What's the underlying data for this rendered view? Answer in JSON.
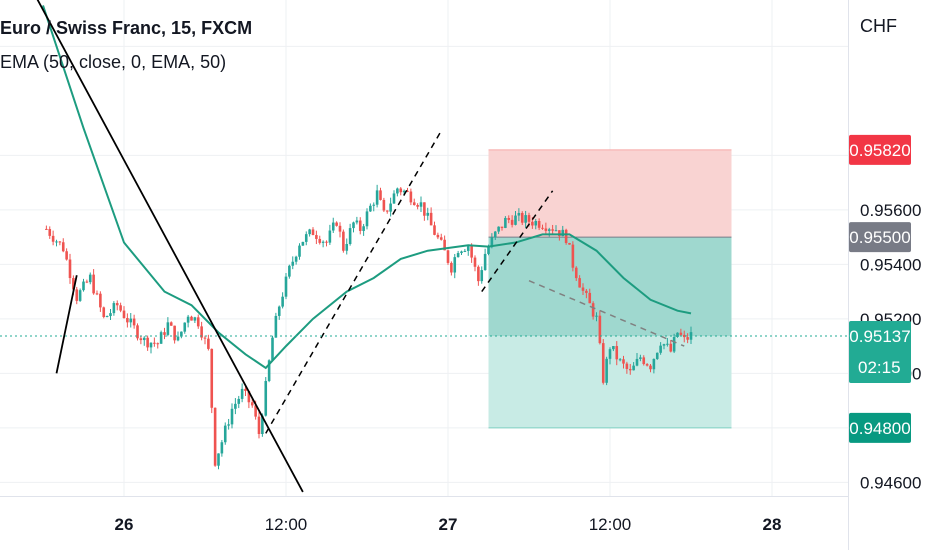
{
  "header": {
    "symbol": "Euro / Swiss Franc, 15, FXCM",
    "indicator": "EMA (50, close, 0, EMA, 50)",
    "currency": "CHF"
  },
  "colors": {
    "up": "#26a69a",
    "down": "#ef5350",
    "ema": "#1d9c80",
    "stop_zone": "#f9d3d2",
    "target_zone": "#c8ebe5",
    "target_zone_active": "#9fd8cf",
    "price_label": "#22ab94",
    "stop_label": "#f23645",
    "entry_label": "#787b86",
    "target_label": "#089981",
    "grid": "#eef0f3",
    "trendline": "#000000"
  },
  "chart_data": {
    "type": "candlestick",
    "symbol": "EURCHF",
    "timeframe": "15",
    "ylim": [
      0.9455,
      0.9637
    ],
    "y_ticks": [
      "0.95600",
      "0.95400",
      "0.95200",
      "0.95000",
      "0.94600"
    ],
    "x_ticks": [
      "26",
      "12:00",
      "27",
      "12:00",
      "28"
    ],
    "x_tick_dates": [
      "2023-06-26 00:00",
      "2023-06-26 12:00",
      "2023-06-27 00:00",
      "2023-06-27 12:00",
      "2023-06-28 00:00"
    ],
    "current_price": 0.95137,
    "countdown": "02:15",
    "position": {
      "stop": 0.9582,
      "entry": 0.955,
      "target": 0.948,
      "start": "2023-06-27 03:00",
      "end": "2023-06-27 21:00",
      "stop_label": "0.95820",
      "entry_label": "0.95500",
      "target_label": "0.94800"
    },
    "close_path": [
      [
        "2023-06-25 18:15",
        0.9553
      ],
      [
        "2023-06-25 19:30",
        0.9546
      ],
      [
        "2023-06-25 20:30",
        0.9528
      ],
      [
        "2023-06-25 21:30",
        0.9535
      ],
      [
        "2023-06-25 22:30",
        0.952
      ],
      [
        "2023-06-25 23:30",
        0.9525
      ],
      [
        "2023-06-26 00:30",
        0.9518
      ],
      [
        "2023-06-26 01:30",
        0.9512
      ],
      [
        "2023-06-26 02:30",
        0.9511
      ],
      [
        "2023-06-26 03:15",
        0.9518
      ],
      [
        "2023-06-26 04:00",
        0.9512
      ],
      [
        "2023-06-26 04:45",
        0.9522
      ],
      [
        "2023-06-26 05:30",
        0.9519
      ],
      [
        "2023-06-26 06:15",
        0.9508
      ],
      [
        "2023-06-26 06:45",
        0.9468
      ],
      [
        "2023-06-26 07:15",
        0.9475
      ],
      [
        "2023-06-26 08:00",
        0.9487
      ],
      [
        "2023-06-26 08:45",
        0.9493
      ],
      [
        "2023-06-26 09:30",
        0.9488
      ],
      [
        "2023-06-26 10:00",
        0.9478
      ],
      [
        "2023-06-26 10:30",
        0.9495
      ],
      [
        "2023-06-26 11:00",
        0.9513
      ],
      [
        "2023-06-26 11:30",
        0.9525
      ],
      [
        "2023-06-26 12:15",
        0.9538
      ],
      [
        "2023-06-26 13:00",
        0.9548
      ],
      [
        "2023-06-26 14:00",
        0.9552
      ],
      [
        "2023-06-26 15:00",
        0.9548
      ],
      [
        "2023-06-26 15:45",
        0.9556
      ],
      [
        "2023-06-26 16:15",
        0.9546
      ],
      [
        "2023-06-26 17:00",
        0.9555
      ],
      [
        "2023-06-26 17:30",
        0.9553
      ],
      [
        "2023-06-26 18:15",
        0.9561
      ],
      [
        "2023-06-26 18:45",
        0.9566
      ],
      [
        "2023-06-26 19:15",
        0.9558
      ],
      [
        "2023-06-26 19:45",
        0.9563
      ],
      [
        "2023-06-26 20:15",
        0.9568
      ],
      [
        "2023-06-26 21:00",
        0.9566
      ],
      [
        "2023-06-26 22:00",
        0.9562
      ],
      [
        "2023-06-26 22:45",
        0.9554
      ],
      [
        "2023-06-26 23:30",
        0.9547
      ],
      [
        "2023-06-27 00:15",
        0.9539
      ],
      [
        "2023-06-27 00:45",
        0.9546
      ],
      [
        "2023-06-27 01:30",
        0.9547
      ],
      [
        "2023-06-27 02:15",
        0.9534
      ],
      [
        "2023-06-27 02:45",
        0.9544
      ],
      [
        "2023-06-27 03:30",
        0.9551
      ],
      [
        "2023-06-27 04:15",
        0.9556
      ],
      [
        "2023-06-27 05:00",
        0.9557
      ],
      [
        "2023-06-27 06:00",
        0.9556
      ],
      [
        "2023-06-27 07:00",
        0.9555
      ],
      [
        "2023-06-27 08:00",
        0.9553
      ],
      [
        "2023-06-27 08:45",
        0.955
      ],
      [
        "2023-06-27 09:15",
        0.954
      ],
      [
        "2023-06-27 10:00",
        0.953
      ],
      [
        "2023-06-27 10:30",
        0.9525
      ],
      [
        "2023-06-27 11:00",
        0.952
      ],
      [
        "2023-06-27 11:30",
        0.9498
      ],
      [
        "2023-06-27 12:00",
        0.951
      ],
      [
        "2023-06-27 12:45",
        0.9504
      ],
      [
        "2023-06-27 13:30",
        0.95
      ],
      [
        "2023-06-27 14:15",
        0.9506
      ],
      [
        "2023-06-27 15:00",
        0.9503
      ],
      [
        "2023-06-27 15:45",
        0.9512
      ],
      [
        "2023-06-27 16:30",
        0.9508
      ],
      [
        "2023-06-27 17:00",
        0.9515
      ],
      [
        "2023-06-27 17:30",
        0.9512
      ],
      [
        "2023-06-27 18:00",
        0.9514
      ]
    ],
    "ema_path": [
      [
        "2023-06-25 18:00",
        0.9635
      ],
      [
        "2023-06-25 21:00",
        0.959
      ],
      [
        "2023-06-26 00:00",
        0.9548
      ],
      [
        "2023-06-26 03:00",
        0.953
      ],
      [
        "2023-06-26 05:00",
        0.9525
      ],
      [
        "2023-06-26 07:00",
        0.9515
      ],
      [
        "2023-06-26 09:00",
        0.9507
      ],
      [
        "2023-06-26 10:30",
        0.9502
      ],
      [
        "2023-06-26 12:00",
        0.951
      ],
      [
        "2023-06-26 14:00",
        0.952
      ],
      [
        "2023-06-26 16:30",
        0.953
      ],
      [
        "2023-06-26 18:30",
        0.9535
      ],
      [
        "2023-06-26 20:30",
        0.9542
      ],
      [
        "2023-06-26 22:30",
        0.9545
      ],
      [
        "2023-06-27 00:00",
        0.9546
      ],
      [
        "2023-06-27 01:30",
        0.9547
      ],
      [
        "2023-06-27 03:00",
        0.95465
      ],
      [
        "2023-06-27 05:00",
        0.9548
      ],
      [
        "2023-06-27 07:00",
        0.9551
      ],
      [
        "2023-06-27 09:00",
        0.9551
      ],
      [
        "2023-06-27 11:00",
        0.9545
      ],
      [
        "2023-06-27 13:00",
        0.9535
      ],
      [
        "2023-06-27 15:00",
        0.9527
      ],
      [
        "2023-06-27 17:00",
        0.9523
      ],
      [
        "2023-06-27 18:00",
        0.9522
      ]
    ],
    "drawings": [
      {
        "style": "solid",
        "from": [
          "2023-06-25 17:30",
          0.9638
        ],
        "to": [
          "2023-06-26 13:15",
          0.94565
        ]
      },
      {
        "style": "solid",
        "from": [
          "2023-06-25 19:00",
          0.95
        ],
        "to": [
          "2023-06-25 20:30",
          0.9536
        ]
      },
      {
        "style": "dashed",
        "from": [
          "2023-06-26 10:30",
          0.9478
        ],
        "to": [
          "2023-06-26 23:30",
          0.9589
        ]
      },
      {
        "style": "dashed",
        "from": [
          "2023-06-27 02:30",
          0.953
        ],
        "to": [
          "2023-06-27 07:45",
          0.9567
        ]
      },
      {
        "style": "dashed",
        "from": [
          "2023-06-27 06:00",
          0.9534
        ],
        "to": [
          "2023-06-27 17:30",
          0.951
        ]
      }
    ]
  }
}
